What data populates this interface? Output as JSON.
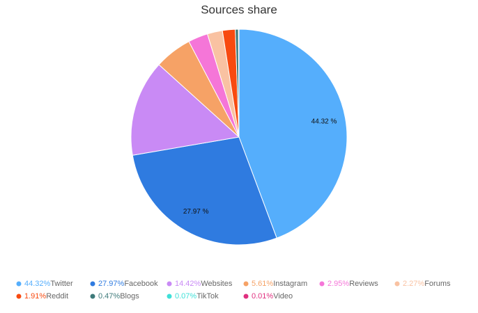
{
  "chart_data": {
    "type": "pie",
    "title": "Sources share",
    "categories": [
      "Twitter",
      "Facebook",
      "Websites",
      "Instagram",
      "Reviews",
      "Forums",
      "Reddit",
      "Blogs",
      "TikTok",
      "Video"
    ],
    "values": [
      44.32,
      27.97,
      14.42,
      5.61,
      2.95,
      2.27,
      1.91,
      0.47,
      0.07,
      0.01
    ],
    "value_labels": [
      "44.32 %",
      "27.97 %",
      null,
      null,
      null,
      null,
      null,
      null,
      null,
      null
    ],
    "legend_value_labels": [
      "44.32%",
      "27.97%",
      "14.42%",
      "5.61%",
      "2.95%",
      "2.27%",
      "1.91%",
      "0.47%",
      "0.07%",
      "0.01%"
    ],
    "colors": [
      "#55aefc",
      "#2f7be0",
      "#c98af5",
      "#f6a266",
      "#f576d8",
      "#f9c2a2",
      "#f84a10",
      "#3e7a7a",
      "#3fe0d8",
      "#e0307f"
    ],
    "legend": "bottom"
  }
}
